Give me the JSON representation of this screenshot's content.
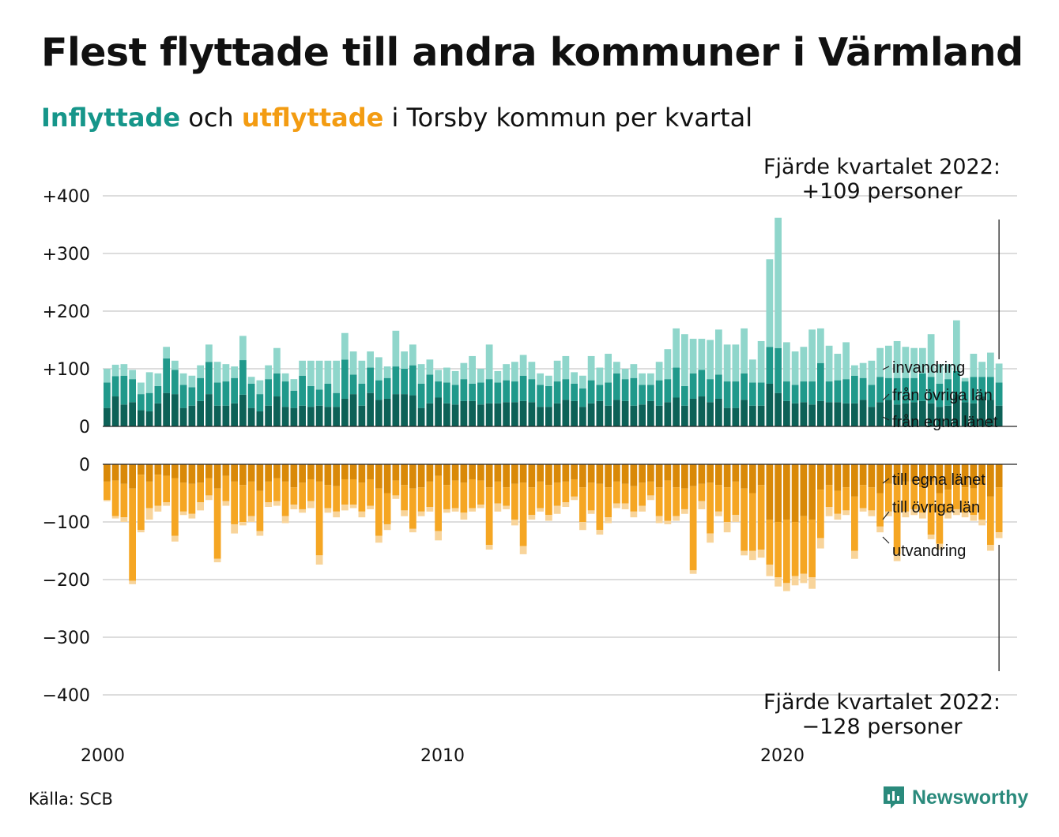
{
  "title": "Flest flyttade till andra kommuner i Värmland",
  "subtitle": {
    "part1": "Inflyttade",
    "part2": " och ",
    "part3": "utflyttade",
    "part4": " i Torsby kommun per kvartal"
  },
  "source": "Källa: SCB",
  "logo_text": "Newsworthy",
  "colors": {
    "in_own": "#0d6157",
    "in_other": "#20998b",
    "in_immig": "#8fd6cb",
    "out_own": "#d98908",
    "out_other": "#f5a623",
    "out_emig": "#f8d49a",
    "grid": "#dddddd"
  },
  "chart_data": {
    "type": "bar",
    "stacked": true,
    "x_start": 2000,
    "x_ticks": [
      "2000",
      "2010",
      "2020"
    ],
    "ylabels_top": [
      "+400",
      "+300",
      "+200",
      "+100",
      "0"
    ],
    "ylabels_bottom": [
      "0",
      "−100",
      "−200",
      "−300",
      "−400"
    ],
    "ylim": [
      -400,
      400
    ],
    "annotation_top": {
      "line1": "Fjärde kvartalet 2022:",
      "line2": "+109 personer"
    },
    "annotation_bottom": {
      "line1": "Fjärde kvartalet 2022:",
      "line2": "−128 personer"
    },
    "series_labels": {
      "in_immig": "invandring",
      "in_other": "från övriga län",
      "in_own": "från egna länet",
      "out_own": "till egna länet",
      "out_other": "till övriga län",
      "out_emig": "utvandring"
    },
    "inflow": {
      "own_county": [
        32,
        52,
        38,
        42,
        28,
        26,
        40,
        58,
        56,
        32,
        36,
        44,
        56,
        36,
        36,
        40,
        55,
        32,
        26,
        36,
        52,
        34,
        32,
        36,
        34,
        36,
        34,
        34,
        48,
        56,
        36,
        58,
        46,
        48,
        56,
        56,
        54,
        32,
        40,
        50,
        40,
        38,
        44,
        44,
        38,
        40,
        40,
        42,
        42,
        44,
        42,
        34,
        34,
        40,
        46,
        44,
        34,
        40,
        44,
        36,
        46,
        44,
        36,
        38,
        44,
        36,
        42,
        50,
        36,
        48,
        52,
        42,
        48,
        32,
        32,
        46,
        36,
        36,
        74,
        58,
        44,
        40,
        42,
        38,
        44,
        42,
        42,
        40,
        40,
        46,
        34,
        42,
        46,
        38,
        40,
        42,
        44,
        40,
        34,
        36,
        56,
        42,
        40,
        52,
        46,
        36
      ],
      "other_counties": [
        44,
        35,
        50,
        40,
        28,
        32,
        30,
        60,
        42,
        40,
        32,
        40,
        56,
        40,
        42,
        44,
        60,
        42,
        30,
        46,
        40,
        44,
        30,
        52,
        36,
        28,
        40,
        24,
        68,
        34,
        38,
        44,
        34,
        36,
        48,
        44,
        52,
        42,
        50,
        28,
        36,
        34,
        38,
        30,
        38,
        42,
        36,
        38,
        36,
        44,
        40,
        38,
        36,
        38,
        36,
        30,
        32,
        40,
        28,
        40,
        46,
        38,
        48,
        34,
        28,
        44,
        40,
        52,
        34,
        44,
        46,
        40,
        42,
        46,
        46,
        46,
        40,
        40,
        64,
        78,
        34,
        32,
        36,
        40,
        66,
        36,
        38,
        42,
        48,
        38,
        38,
        44,
        38,
        46,
        44,
        42,
        48,
        46,
        40,
        46,
        40,
        36,
        46,
        34,
        40,
        40
      ],
      "immigration": [
        24,
        20,
        20,
        16,
        20,
        36,
        22,
        20,
        16,
        20,
        20,
        22,
        30,
        36,
        30,
        20,
        42,
        12,
        24,
        24,
        44,
        14,
        20,
        26,
        44,
        50,
        40,
        56,
        46,
        40,
        40,
        28,
        40,
        20,
        62,
        30,
        36,
        34,
        26,
        20,
        26,
        24,
        28,
        48,
        24,
        60,
        20,
        28,
        34,
        36,
        30,
        20,
        18,
        36,
        40,
        20,
        22,
        42,
        30,
        50,
        20,
        18,
        24,
        20,
        20,
        32,
        52,
        68,
        90,
        60,
        54,
        68,
        78,
        64,
        64,
        78,
        40,
        72,
        152,
        226,
        68,
        58,
        60,
        90,
        60,
        62,
        46,
        64,
        18,
        26,
        42,
        50,
        56,
        64,
        54,
        52,
        44,
        74,
        34,
        26,
        88,
        6,
        40,
        26,
        42,
        33
      ]
    },
    "outflow": {
      "own_county": [
        30,
        28,
        34,
        42,
        18,
        30,
        18,
        20,
        24,
        32,
        34,
        32,
        24,
        42,
        20,
        30,
        36,
        30,
        46,
        30,
        24,
        30,
        40,
        32,
        26,
        30,
        36,
        38,
        26,
        26,
        32,
        26,
        42,
        50,
        28,
        36,
        42,
        40,
        30,
        20,
        36,
        28,
        32,
        26,
        28,
        40,
        30,
        40,
        34,
        32,
        40,
        30,
        36,
        32,
        30,
        26,
        40,
        32,
        34,
        40,
        30,
        34,
        38,
        32,
        30,
        40,
        28,
        40,
        42,
        38,
        34,
        32,
        36,
        40,
        30,
        42,
        50,
        36,
        96,
        100,
        96,
        100,
        90,
        96,
        44,
        36,
        46,
        40,
        56,
        36,
        40,
        50,
        34,
        36,
        30,
        30,
        40,
        30,
        50,
        44,
        36,
        40,
        42,
        36,
        56,
        40
      ],
      "other_counties": [
        32,
        62,
        58,
        160,
        96,
        46,
        54,
        46,
        100,
        50,
        52,
        34,
        30,
        122,
        44,
        74,
        64,
        60,
        70,
        36,
        40,
        60,
        30,
        46,
        38,
        128,
        40,
        44,
        44,
        44,
        50,
        46,
        82,
        54,
        26,
        44,
        70,
        42,
        44,
        96,
        42,
        48,
        52,
        50,
        42,
        100,
        38,
        32,
        62,
        110,
        48,
        46,
        52,
        40,
        36,
        30,
        60,
        48,
        80,
        52,
        38,
        34,
        44,
        40,
        24,
        50,
        70,
        50,
        36,
        146,
        30,
        88,
        46,
        60,
        58,
        108,
        100,
        112,
        78,
        96,
        110,
        94,
        100,
        100,
        84,
        38,
        40,
        40,
        94,
        40,
        40,
        58,
        48,
        120,
        52,
        48,
        44,
        92,
        88,
        40,
        42,
        44,
        46,
        60,
        84,
        78
      ],
      "emigration": [
        2,
        4,
        8,
        6,
        4,
        20,
        10,
        6,
        10,
        6,
        8,
        14,
        8,
        6,
        8,
        16,
        6,
        10,
        8,
        8,
        8,
        12,
        8,
        6,
        12,
        16,
        8,
        10,
        10,
        6,
        10,
        6,
        12,
        10,
        6,
        10,
        6,
        8,
        8,
        16,
        6,
        6,
        12,
        6,
        6,
        8,
        14,
        6,
        10,
        14,
        8,
        6,
        10,
        14,
        8,
        6,
        14,
        6,
        8,
        10,
        8,
        10,
        10,
        10,
        8,
        12,
        6,
        8,
        8,
        6,
        14,
        16,
        8,
        18,
        12,
        8,
        16,
        14,
        20,
        16,
        14,
        16,
        16,
        20,
        18,
        16,
        10,
        8,
        14,
        6,
        10,
        10,
        8,
        12,
        10,
        10,
        10,
        8,
        10,
        10,
        10,
        8,
        10,
        10,
        10,
        10
      ]
    }
  }
}
